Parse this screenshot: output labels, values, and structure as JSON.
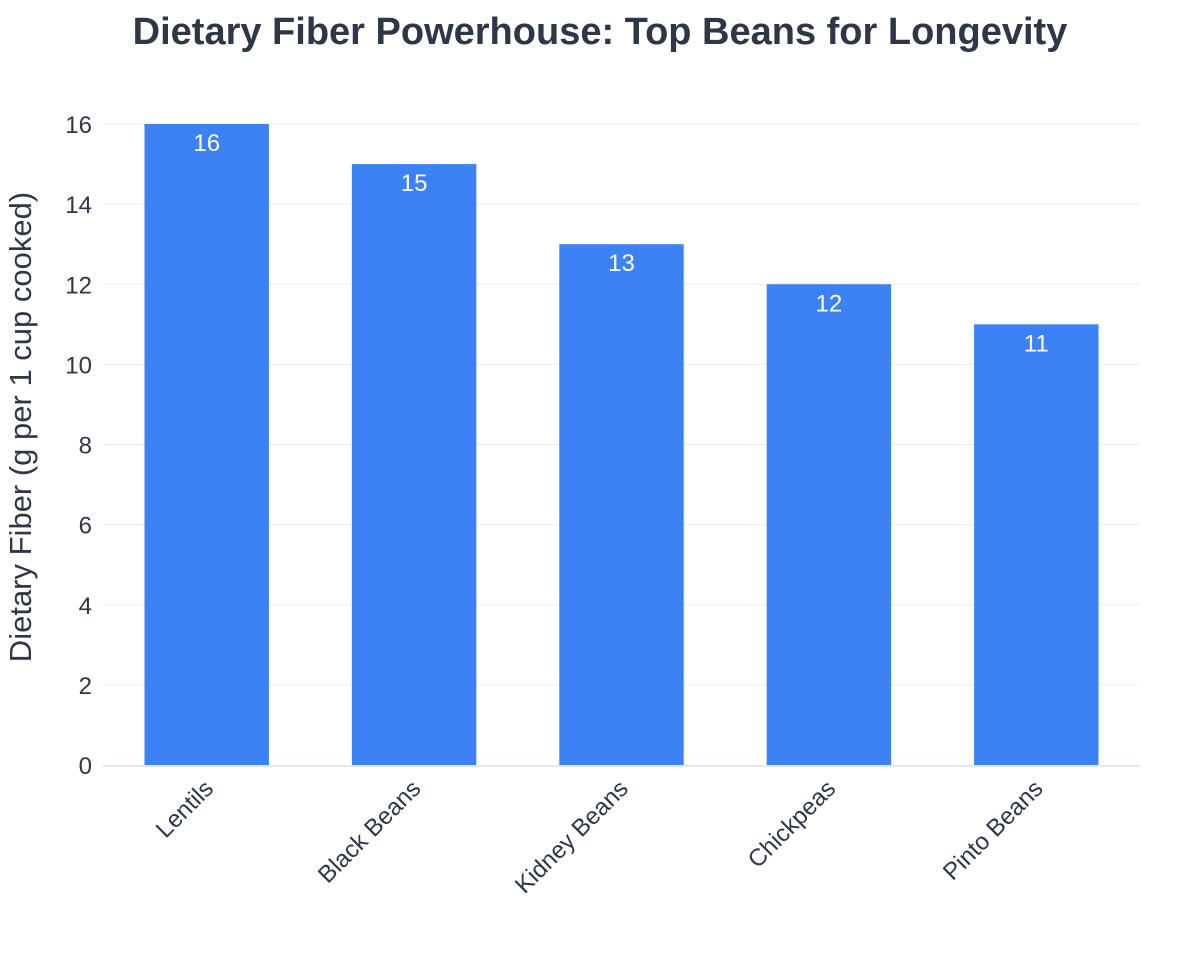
{
  "chart_data": {
    "type": "bar",
    "title": "Dietary Fiber Powerhouse: Top Beans for Longevity",
    "xlabel": "",
    "ylabel": "Dietary Fiber (g per 1 cup cooked)",
    "categories": [
      "Lentils",
      "Black Beans",
      "Kidney Beans",
      "Chickpeas",
      "Pinto Beans"
    ],
    "values": [
      16,
      15,
      13,
      12,
      11
    ],
    "ylim": [
      0,
      16
    ],
    "yticks": [
      0,
      2,
      4,
      6,
      8,
      10,
      12,
      14,
      16
    ],
    "bar_color": "#3d82f4",
    "grid": true,
    "legend": "none",
    "data_labels": "inside-top"
  }
}
